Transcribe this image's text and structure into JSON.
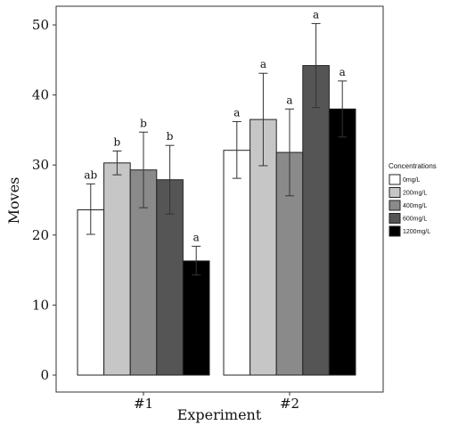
{
  "chart_data": {
    "type": "bar",
    "xlabel": "Experiment",
    "ylabel": "Moves",
    "ylim": [
      0,
      52
    ],
    "yticks": [
      0,
      10,
      20,
      30,
      40,
      50
    ],
    "categories": [
      "#1",
      "#2"
    ],
    "grid": false,
    "legend": {
      "title": "Concentrations",
      "position": "right"
    },
    "series": [
      {
        "name": "0mg/L",
        "color": "#ffffff",
        "values": [
          23.6,
          32.1
        ],
        "error_low": [
          20.1,
          28.1
        ],
        "error_high": [
          27.3,
          36.2
        ],
        "labels": [
          "ab",
          "a"
        ]
      },
      {
        "name": "200mg/L",
        "color": "#c6c6c6",
        "values": [
          30.3,
          36.5
        ],
        "error_low": [
          28.6,
          29.9
        ],
        "error_high": [
          32.0,
          43.1
        ],
        "labels": [
          "b",
          "a"
        ]
      },
      {
        "name": "400mg/L",
        "color": "#8a8a8a",
        "values": [
          29.3,
          31.8
        ],
        "error_low": [
          23.9,
          25.6
        ],
        "error_high": [
          34.7,
          38.0
        ],
        "labels": [
          "b",
          "a"
        ]
      },
      {
        "name": "600mg/L",
        "color": "#555555",
        "values": [
          27.9,
          44.2
        ],
        "error_low": [
          23.0,
          38.2
        ],
        "error_high": [
          32.8,
          50.2
        ],
        "labels": [
          "b",
          "a"
        ]
      },
      {
        "name": "1200mg/L",
        "color": "#000000",
        "values": [
          16.3,
          38.0
        ],
        "error_low": [
          14.3,
          34.0
        ],
        "error_high": [
          18.4,
          42.0
        ],
        "labels": [
          "a",
          "a"
        ]
      }
    ]
  }
}
